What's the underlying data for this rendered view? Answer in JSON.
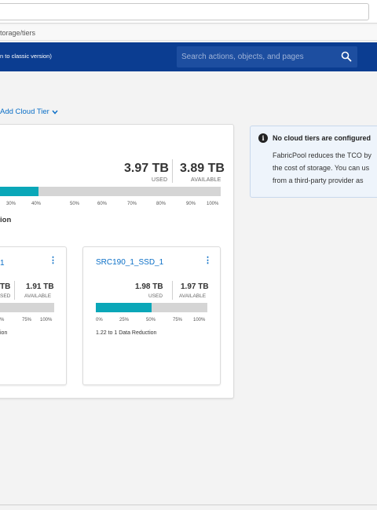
{
  "breadcrumb": "torage/tiers",
  "header": {
    "note": "n to classic version)",
    "search_placeholder": "Search actions, objects, and pages"
  },
  "actions": {
    "add_cloud_tier": "Add Cloud Tier"
  },
  "summary": {
    "used": "3.97 TB",
    "used_label": "USED",
    "available": "3.89 TB",
    "available_label": "AVAILABLE",
    "used_fraction": 0.5,
    "ticks": [
      "30%",
      "40%",
      "50%",
      "60%",
      "70%",
      "80%",
      "90%",
      "100%"
    ],
    "reduction_partial": "ion"
  },
  "tiers": [
    {
      "name": "1",
      "used": "TB",
      "used_label": "SED",
      "available": "1.91 TB",
      "available_label": "AVAILABLE",
      "ticks": [
        "%",
        "75%",
        "100%"
      ],
      "reduction": "ion"
    },
    {
      "name": "SRC190_1_SSD_1",
      "used": "1.98 TB",
      "used_label": "USED",
      "available": "1.97 TB",
      "available_label": "AVAILABLE",
      "used_fraction": 0.5,
      "ticks": [
        "0%",
        "25%",
        "50%",
        "75%",
        "100%"
      ],
      "reduction": "1.22 to 1 Data Reduction"
    }
  ],
  "info": {
    "title": "No cloud tiers are configured",
    "line1": "FabricPool reduces the TCO by",
    "line2": "the cost of storage. You can us",
    "line3": "from a third-party provider as"
  },
  "colors": {
    "header": "#0b3d91",
    "bar_fill": "#0aa7b8",
    "link": "#0b6fc7"
  }
}
